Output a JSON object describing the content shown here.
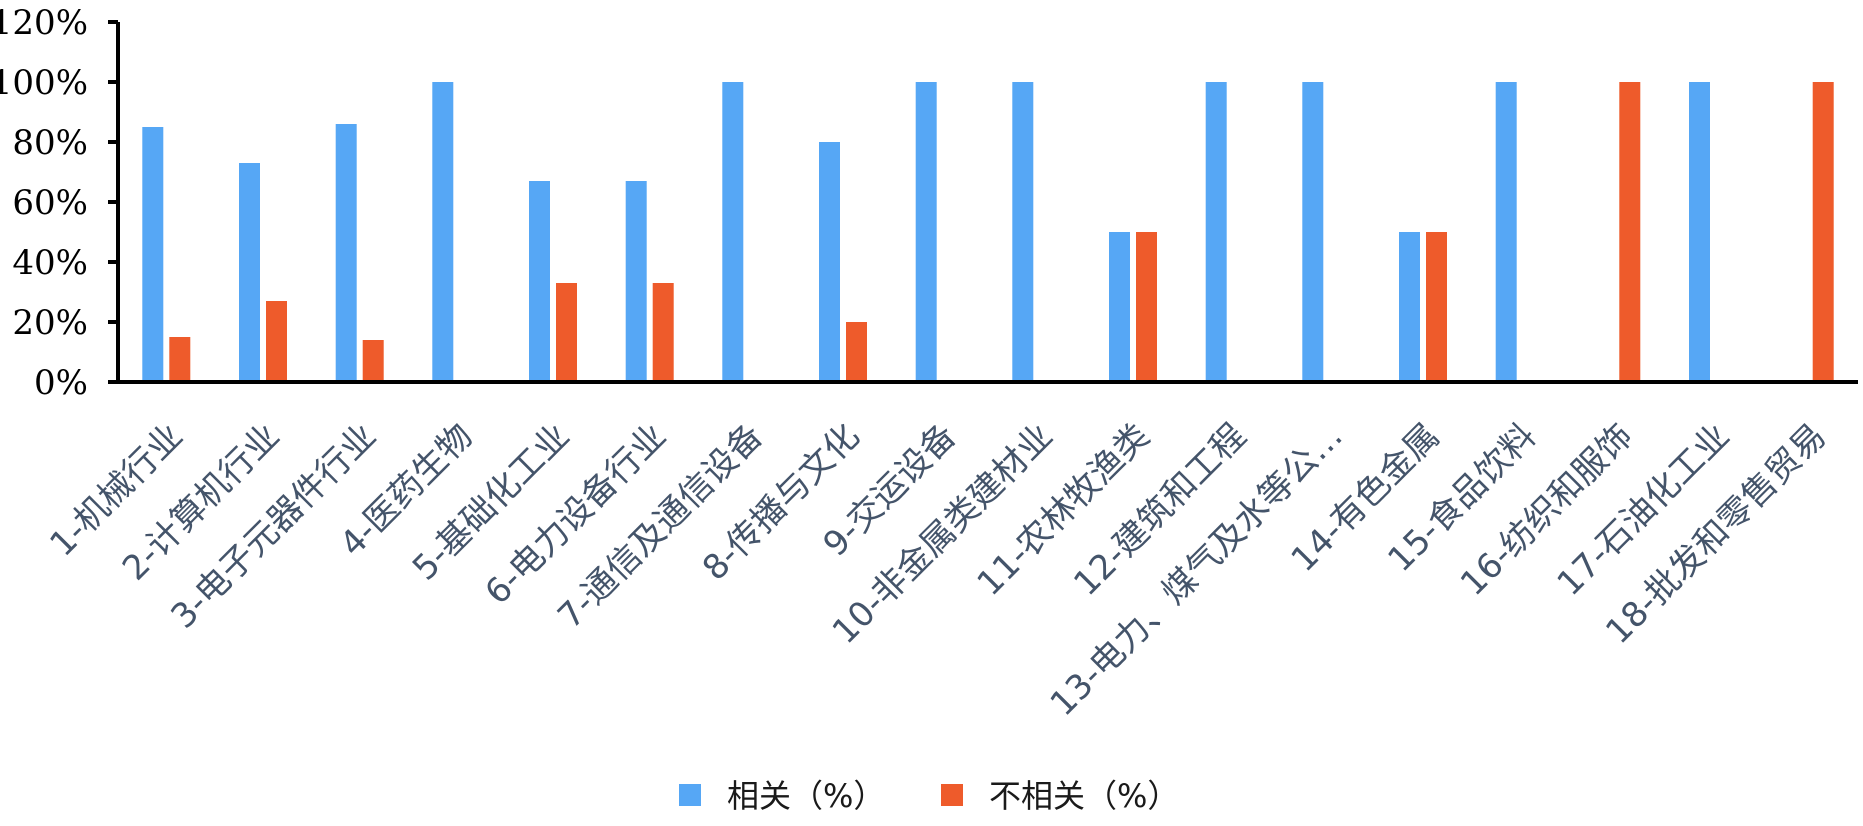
{
  "chart_data": {
    "type": "bar",
    "title": "",
    "xlabel": "",
    "ylabel": "",
    "ylim": [
      0,
      1.2
    ],
    "y_ticks": [
      0,
      0.2,
      0.4,
      0.6,
      0.8,
      1.0,
      1.2
    ],
    "y_tick_labels": [
      "0%",
      "20%",
      "40%",
      "60%",
      "80%",
      "100%",
      "120%"
    ],
    "categories": [
      "1-机械行业",
      "2-计算机行业",
      "3-电子元器件行业",
      "4-医药生物",
      "5-基础化工业",
      "6-电力设备行业",
      "7-通信及通信设备",
      "8-传播与文化",
      "9-交运设备",
      "10-非金属类建材业",
      "11-农林牧渔类",
      "12-建筑和工程",
      "13-电力、煤气及水等公…",
      "14-有色金属",
      "15-食品饮料",
      "16-纺织和服饰",
      "17-石油化工业",
      "18-批发和零售贸易"
    ],
    "series": [
      {
        "name": "相关（%）",
        "color": "#56a7f5",
        "values": [
          0.85,
          0.73,
          0.86,
          1.0,
          0.67,
          0.67,
          1.0,
          0.8,
          1.0,
          1.0,
          0.5,
          1.0,
          1.0,
          0.5,
          1.0,
          0,
          1.0,
          0
        ]
      },
      {
        "name": "不相关（%）",
        "color": "#ee5b2b",
        "values": [
          0.15,
          0.27,
          0.14,
          0,
          0.33,
          0.33,
          0,
          0.2,
          0,
          0,
          0.5,
          0,
          0,
          0.5,
          0,
          1.0,
          0,
          1.0
        ]
      }
    ],
    "grid": false,
    "legend": "bottom"
  }
}
